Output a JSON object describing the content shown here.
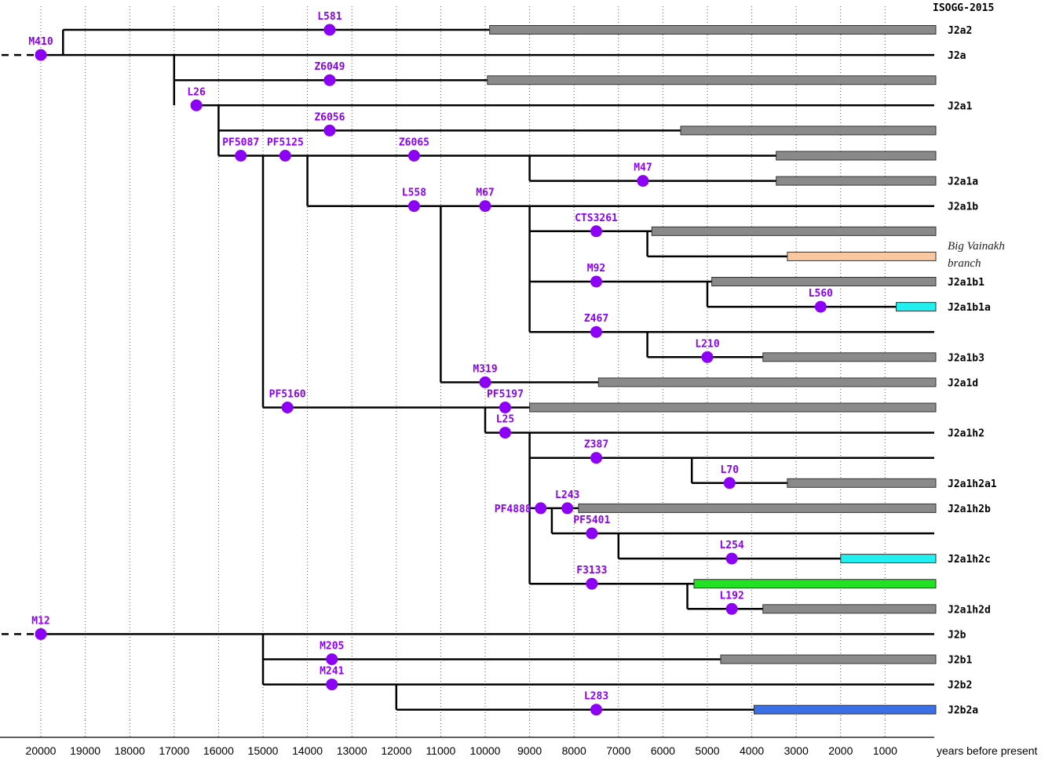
{
  "header": {
    "label": "ISOGG-2015"
  },
  "note": {
    "line1": "Big Vainakh",
    "line2": "branch"
  },
  "colors": {
    "node": "#8c00f5",
    "gray": "#8a8a8a",
    "peach": "#f9c8a0",
    "cyan": "#22f0f0",
    "green": "#22e022",
    "blue": "#3b6fe6"
  },
  "chart_data": {
    "type": "tree",
    "xlabel": "years before present",
    "xlim": [
      20000,
      0
    ],
    "ticks": [
      20000,
      19000,
      18000,
      17000,
      16000,
      15000,
      14000,
      13000,
      12000,
      11000,
      10000,
      9000,
      8000,
      7000,
      6000,
      5000,
      4000,
      3000,
      2000,
      1000
    ],
    "lines": [
      {
        "from": 19500,
        "label": "J2a2"
      },
      {
        "from": 20000,
        "label": "J2a"
      },
      {
        "from": 17000,
        "label": ""
      },
      {
        "from": 16500,
        "label": "J2a1"
      },
      {
        "from": 16000,
        "label": ""
      },
      {
        "from": 16000,
        "label": ""
      },
      {
        "from": 9000,
        "label": "J2a1a"
      },
      {
        "from": 14000,
        "label": "J2a1b"
      },
      {
        "from": 9000,
        "label": ""
      },
      {
        "from": 6350,
        "label": ""
      },
      {
        "from": 9000,
        "label": "J2a1b1"
      },
      {
        "from": 5000,
        "label": "J2a1b1a"
      },
      {
        "from": 9000,
        "label": ""
      },
      {
        "from": 6350,
        "label": "J2a1b3"
      },
      {
        "from": 11000,
        "label": "J2a1d"
      },
      {
        "from": 15000,
        "label": ""
      },
      {
        "from": 10000,
        "label": "J2a1h2"
      },
      {
        "from": 9000,
        "label": ""
      },
      {
        "from": 5350,
        "label": "J2a1h2a1"
      },
      {
        "from": 9000,
        "label": "J2a1h2b"
      },
      {
        "from": 8500,
        "label": ""
      },
      {
        "from": 7000,
        "label": "J2a1h2c"
      },
      {
        "from": 9000,
        "label": ""
      },
      {
        "from": 5450,
        "label": "J2a1h2d"
      },
      {
        "from": 20000,
        "label": "J2b"
      },
      {
        "from": 15000,
        "label": "J2b1"
      },
      {
        "from": 15000,
        "label": "J2b2"
      },
      {
        "from": 12000,
        "label": "J2b2a"
      }
    ],
    "connectors": [
      {
        "at": 19500,
        "from_row": 0,
        "to_row": 1
      },
      {
        "at": 17000,
        "from_row": 1,
        "to_row": 3
      },
      {
        "at": 16000,
        "from_row": 3,
        "to_row": 5
      },
      {
        "at": 15000,
        "from_row": 5,
        "to_row": 15
      },
      {
        "at": 14000,
        "from_row": 5,
        "to_row": 7
      },
      {
        "at": 9000,
        "from_row": 5,
        "to_row": 6
      },
      {
        "at": 11000,
        "from_row": 7,
        "to_row": 14
      },
      {
        "at": 9000,
        "from_row": 7,
        "to_row": 12
      },
      {
        "at": 6350,
        "from_row": 8,
        "to_row": 9
      },
      {
        "at": 5000,
        "from_row": 10,
        "to_row": 11
      },
      {
        "at": 6350,
        "from_row": 12,
        "to_row": 13
      },
      {
        "at": 10000,
        "from_row": 15,
        "to_row": 16
      },
      {
        "at": 9000,
        "from_row": 16,
        "to_row": 22
      },
      {
        "at": 5350,
        "from_row": 17,
        "to_row": 18
      },
      {
        "at": 8500,
        "from_row": 19,
        "to_row": 20
      },
      {
        "at": 7000,
        "from_row": 20,
        "to_row": 21
      },
      {
        "at": 5450,
        "from_row": 22,
        "to_row": 23
      },
      {
        "at": 15000,
        "from_row": 24,
        "to_row": 26
      },
      {
        "at": 12000,
        "from_row": 26,
        "to_row": 27
      }
    ],
    "nodes": [
      {
        "label": "L581",
        "year": 13500,
        "row": 0
      },
      {
        "label": "M410",
        "year": 20000,
        "row": 1
      },
      {
        "label": "Z6049",
        "year": 13500,
        "row": 2
      },
      {
        "label": "L26",
        "year": 16500,
        "row": 3
      },
      {
        "label": "Z6056",
        "year": 13500,
        "row": 4
      },
      {
        "label": "PF5087",
        "year": 15500,
        "row": 5
      },
      {
        "label": "PF5125",
        "year": 14500,
        "row": 5
      },
      {
        "label": "Z6065",
        "year": 11600,
        "row": 5
      },
      {
        "label": "M47",
        "year": 6450,
        "row": 6
      },
      {
        "label": "L558",
        "year": 11600,
        "row": 7
      },
      {
        "label": "M67",
        "year": 10000,
        "row": 7
      },
      {
        "label": "CTS3261",
        "year": 7500,
        "row": 8
      },
      {
        "label": "M92",
        "year": 7500,
        "row": 10
      },
      {
        "label": "L560",
        "year": 2450,
        "row": 11
      },
      {
        "label": "Z467",
        "year": 7500,
        "row": 12
      },
      {
        "label": "L210",
        "year": 5000,
        "row": 13
      },
      {
        "label": "M319",
        "year": 10000,
        "row": 14
      },
      {
        "label": "PF5160",
        "year": 14450,
        "row": 15
      },
      {
        "label": "PF5197",
        "year": 9550,
        "row": 15
      },
      {
        "label": "L25",
        "year": 9550,
        "row": 16
      },
      {
        "label": "Z387",
        "year": 7500,
        "row": 17
      },
      {
        "label": "L70",
        "year": 4500,
        "row": 18
      },
      {
        "label": "PF4888",
        "year": 8750,
        "row": 19
      },
      {
        "label": "L243",
        "year": 8150,
        "row": 19
      },
      {
        "label": "PF5401",
        "year": 7600,
        "row": 20
      },
      {
        "label": "L254",
        "year": 4450,
        "row": 21
      },
      {
        "label": "F3133",
        "year": 7600,
        "row": 22
      },
      {
        "label": "L192",
        "year": 4450,
        "row": 23
      },
      {
        "label": "M12",
        "year": 20000,
        "row": 24
      },
      {
        "label": "M205",
        "year": 13450,
        "row": 25
      },
      {
        "label": "M241",
        "year": 13450,
        "row": 26
      },
      {
        "label": "L283",
        "year": 7500,
        "row": 27
      }
    ],
    "bars": [
      {
        "row": 0,
        "start": 9900,
        "color": "gray"
      },
      {
        "row": 2,
        "start": 9950,
        "color": "gray"
      },
      {
        "row": 4,
        "start": 5600,
        "color": "gray"
      },
      {
        "row": 5,
        "start": 3450,
        "color": "gray"
      },
      {
        "row": 6,
        "start": 3450,
        "color": "gray"
      },
      {
        "row": 8,
        "start": 6250,
        "color": "gray"
      },
      {
        "row": 9,
        "start": 3200,
        "color": "peach"
      },
      {
        "row": 10,
        "start": 4900,
        "color": "gray"
      },
      {
        "row": 11,
        "start": 750,
        "color": "cyan"
      },
      {
        "row": 13,
        "start": 3750,
        "color": "gray"
      },
      {
        "row": 14,
        "start": 7450,
        "color": "gray"
      },
      {
        "row": 15,
        "start": 9000,
        "color": "gray"
      },
      {
        "row": 18,
        "start": 3200,
        "color": "gray"
      },
      {
        "row": 19,
        "start": 7900,
        "color": "gray"
      },
      {
        "row": 21,
        "start": 2000,
        "color": "cyan"
      },
      {
        "row": 22,
        "start": 5300,
        "color": "green"
      },
      {
        "row": 23,
        "start": 3750,
        "color": "gray"
      },
      {
        "row": 25,
        "start": 4700,
        "color": "gray"
      },
      {
        "row": 27,
        "start": 3950,
        "color": "blue"
      }
    ],
    "root_stubs": [
      1,
      24
    ]
  }
}
